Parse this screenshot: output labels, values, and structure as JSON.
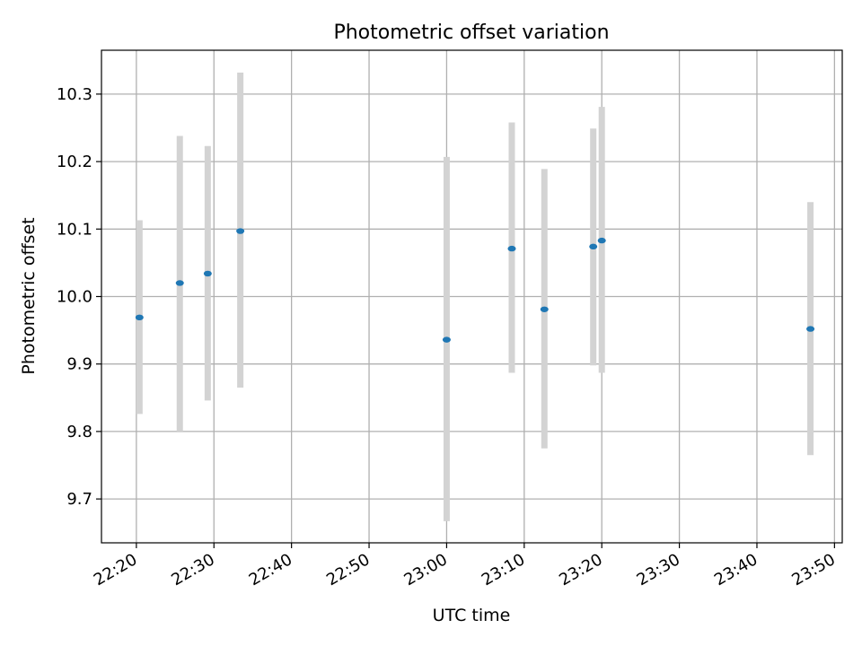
{
  "chart_data": {
    "type": "scatter",
    "title": "Photometric offset variation",
    "xlabel": "UTC time",
    "ylabel": "Photometric offset",
    "x_axis": {
      "unit": "UTC time (HH:MM)",
      "range": [
        "22:15.5",
        "23:51"
      ],
      "tick_labels": [
        "22:20",
        "22:30",
        "22:40",
        "22:50",
        "23:00",
        "23:10",
        "23:20",
        "23:30",
        "23:40",
        "23:50"
      ]
    },
    "y_axis": {
      "range": [
        9.635,
        10.365
      ],
      "tick_values": [
        9.7,
        9.8,
        9.9,
        10.0,
        10.1,
        10.2,
        10.3
      ],
      "tick_labels": [
        "9.7",
        "9.8",
        "9.9",
        "10.0",
        "10.1",
        "10.2",
        "10.3"
      ]
    },
    "grid": true,
    "colors": {
      "point": "#1f77b4",
      "errorbar": "#d3d3d3",
      "grid": "#b0b0b0"
    },
    "points": [
      {
        "t": "22:20.4",
        "y": 9.969,
        "lo": 9.826,
        "hi": 10.113
      },
      {
        "t": "22:25.6",
        "y": 10.02,
        "lo": 9.8,
        "hi": 10.238
      },
      {
        "t": "22:29.2",
        "y": 10.034,
        "lo": 9.846,
        "hi": 10.223
      },
      {
        "t": "22:33.4",
        "y": 10.097,
        "lo": 9.865,
        "hi": 10.332
      },
      {
        "t": "23:00.0",
        "y": 9.936,
        "lo": 9.667,
        "hi": 10.207
      },
      {
        "t": "23:08.4",
        "y": 10.071,
        "lo": 9.887,
        "hi": 10.258
      },
      {
        "t": "23:12.6",
        "y": 9.981,
        "lo": 9.775,
        "hi": 10.189
      },
      {
        "t": "23:18.9",
        "y": 10.074,
        "lo": 9.898,
        "hi": 10.249
      },
      {
        "t": "23:20.0",
        "y": 10.083,
        "lo": 9.887,
        "hi": 10.281
      },
      {
        "t": "23:46.9",
        "y": 9.952,
        "lo": 9.765,
        "hi": 10.14
      }
    ]
  }
}
